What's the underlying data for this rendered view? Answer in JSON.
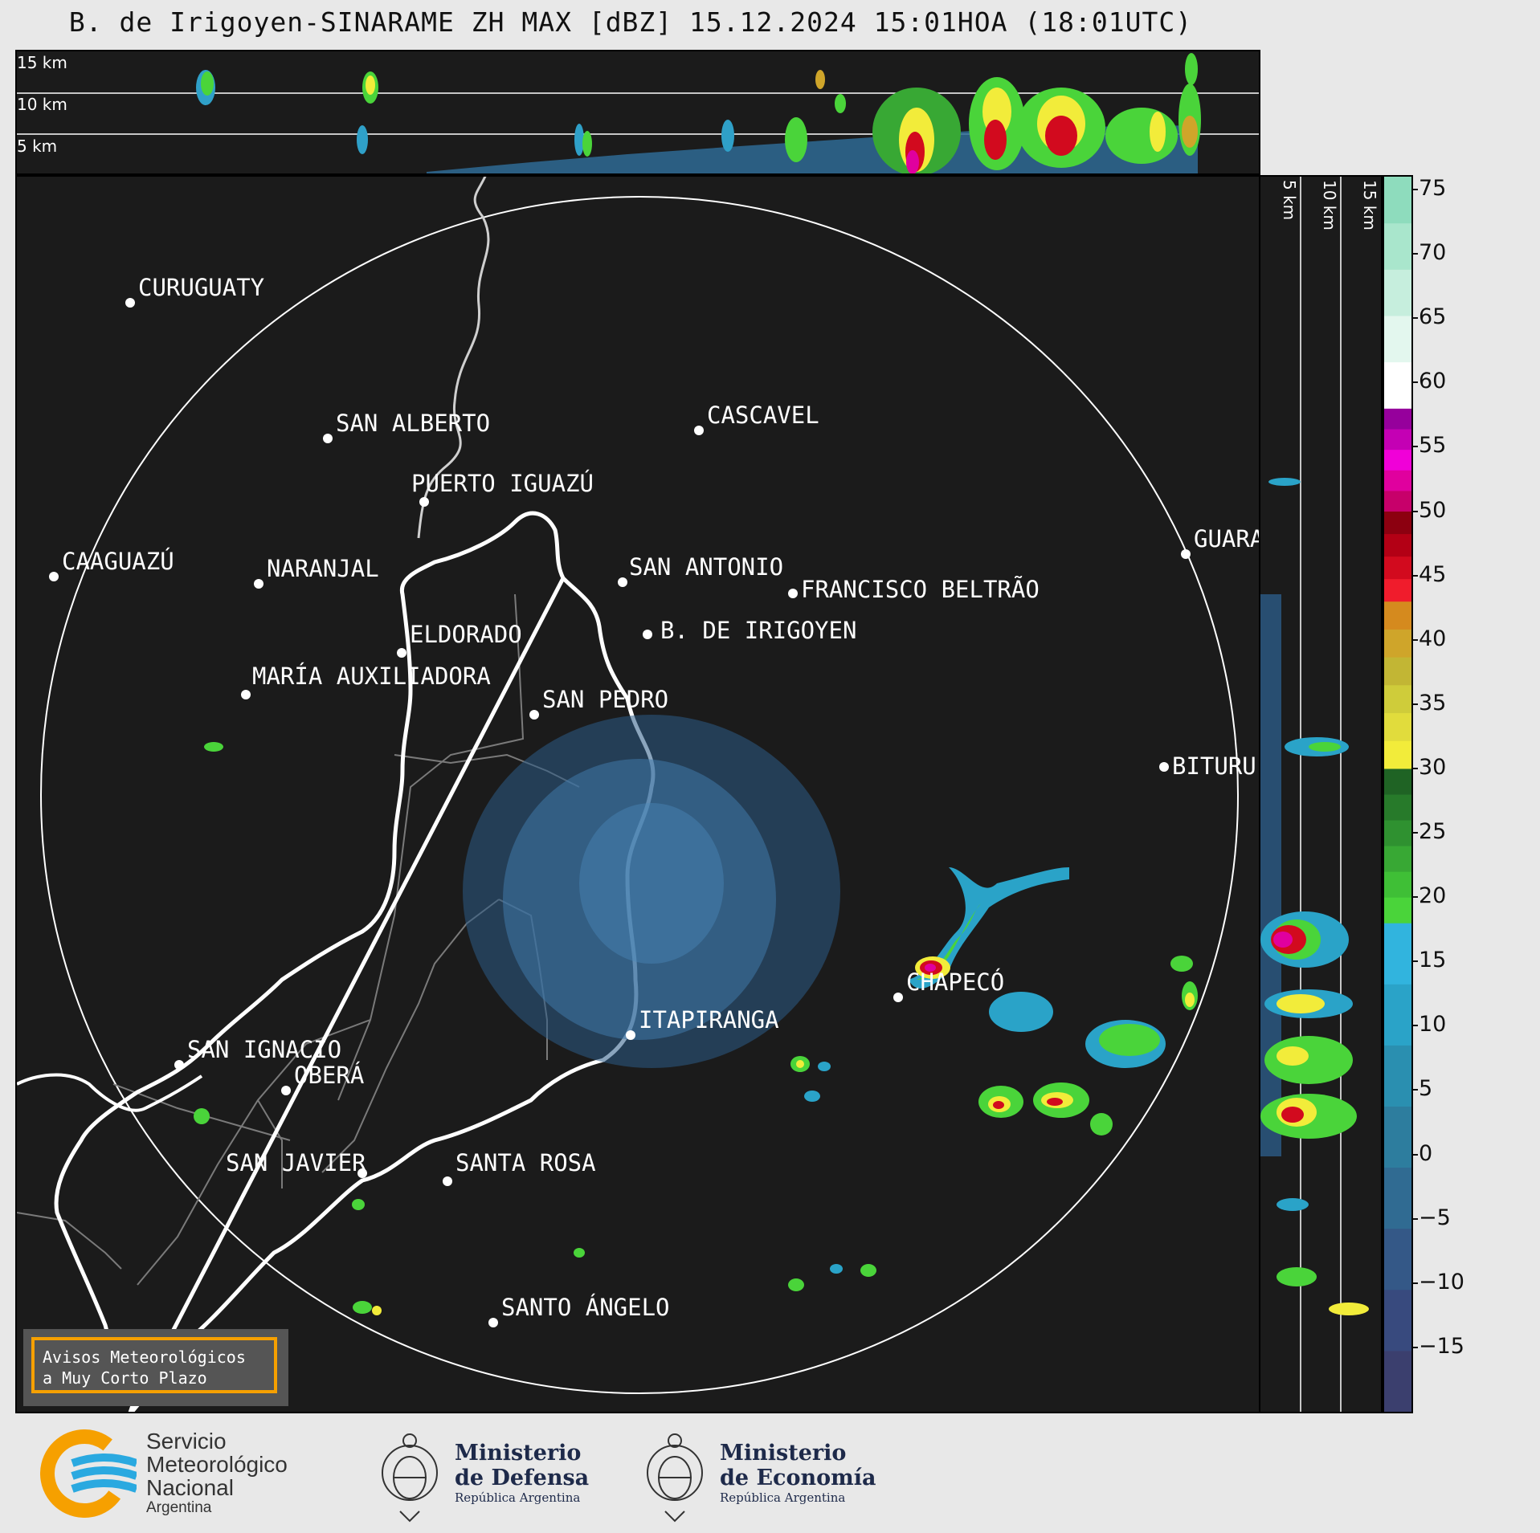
{
  "title": "B. de Irigoyen-SINARAME ZH MAX [dBZ] 15.12.2024 15:01HOA (18:01UTC)",
  "top_panel": {
    "height_labels": [
      "15 km",
      "10 km",
      "5 km"
    ]
  },
  "side_panel": {
    "height_labels": [
      "5 km",
      "10 km",
      "15 km"
    ]
  },
  "colorbar": {
    "ticks": [
      "75",
      "70",
      "65",
      "60",
      "55",
      "50",
      "45",
      "40",
      "35",
      "30",
      "25",
      "20",
      "15",
      "10",
      "5",
      "0",
      "−5",
      "−10",
      "−15"
    ],
    "range": [
      -20,
      76
    ],
    "segments": [
      {
        "from": -20,
        "to": 18,
        "colors": [
          "#3b3f6e",
          "#384a7e",
          "#345887",
          "#306b92",
          "#2d7d9e",
          "#2a8fb0",
          "#2aa3c8",
          "#31b4de"
        ]
      },
      {
        "from": 18,
        "to": 30,
        "colors": [
          "#4ad43a",
          "#3fbf36",
          "#38a834",
          "#2f9130",
          "#277a2a",
          "#1f6324"
        ]
      },
      {
        "from": 30,
        "to": 43,
        "colors": [
          "#f2ec3a",
          "#e1dc3c",
          "#cfcc3a",
          "#c2b634",
          "#cfa52a",
          "#d58a1e"
        ]
      },
      {
        "from": 43,
        "to": 50,
        "colors": [
          "#f01c2c",
          "#d20a1e",
          "#b30015",
          "#8c0010"
        ]
      },
      {
        "from": 50,
        "to": 58,
        "colors": [
          "#c7006a",
          "#e0009e",
          "#f000d8",
          "#c400b4",
          "#96009c"
        ]
      },
      {
        "from": 58,
        "to": 76,
        "colors": [
          "#ffffff",
          "#e3f7ee",
          "#c6eedd",
          "#a9e6cc",
          "#8edcbd"
        ]
      }
    ]
  },
  "cities": [
    {
      "name": "CURUGUATY"
    },
    {
      "name": "SAN ALBERTO"
    },
    {
      "name": "CASCAVEL"
    },
    {
      "name": "CAAGUAZÚ"
    },
    {
      "name": "PUERTO IGUAZÚ"
    },
    {
      "name": "GUARA"
    },
    {
      "name": "NARANJAL"
    },
    {
      "name": "SAN ANTONIO"
    },
    {
      "name": "FRANCISCO BELTRÃO"
    },
    {
      "name": "B. DE IRIGOYEN"
    },
    {
      "name": "BITURU"
    },
    {
      "name": "ELDORADO"
    },
    {
      "name": "MARÍA AUXILIADORA"
    },
    {
      "name": "SAN PEDRO"
    },
    {
      "name": "CHAPECÓ"
    },
    {
      "name": "ITAPIRANGA"
    },
    {
      "name": "SAN IGNACIO"
    },
    {
      "name": "OBERÁ"
    },
    {
      "name": "SAN JAVIER"
    },
    {
      "name": "SANTA ROSA"
    },
    {
      "name": "SANTO ÁNGELO"
    }
  ],
  "avisos": {
    "line1": "Avisos Meteorológicos",
    "line2": "a Muy Corto Plazo"
  },
  "footer": {
    "smn": {
      "line1": "Servicio",
      "line2": "Meteorológico",
      "line3": "Nacional",
      "line4": "Argentina"
    },
    "defensa": {
      "line1": "Ministerio",
      "line2": "de Defensa",
      "line3": "República Argentina"
    },
    "economia": {
      "line1": "Ministerio",
      "line2": "de Economía",
      "line3": "República Argentina"
    }
  },
  "colors": {
    "background": "#1b1b1b",
    "page": "#e8e8e8",
    "brand_orange": "#f6a000",
    "brand_blue": "#2aa9e0"
  }
}
